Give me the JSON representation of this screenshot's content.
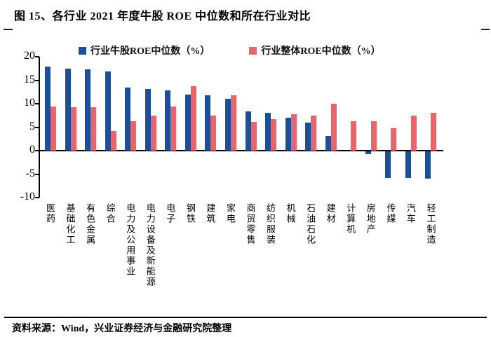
{
  "figure": {
    "title": "图 15、各行业 2021 年度牛股 ROE 中位数和所在行业对比",
    "source": "资料来源：Wind，兴业证券经济与金融研究院整理"
  },
  "colors": {
    "bull_blue": "#1a4f9c",
    "industry_red": "#e9656a",
    "axis_black": "#000000"
  },
  "chart_data": {
    "type": "bar",
    "title": "各行业2021年度牛股ROE中位数和所在行业对比",
    "categories": [
      "医药",
      "基础化工",
      "有色金属",
      "综合",
      "电力及公用事业",
      "电力设备及新能源",
      "电子",
      "钢铁",
      "建筑",
      "家电",
      "商贸零售",
      "纺织服装",
      "机械",
      "石油石化",
      "建材",
      "计算机",
      "房地产",
      "传媒",
      "汽车",
      "轻工制造"
    ],
    "series": [
      {
        "name": "行业牛股ROE中位数（%）",
        "color_key": "bull_blue",
        "values": [
          17.9,
          17.5,
          17.3,
          16.9,
          13.5,
          13.1,
          12.8,
          11.9,
          11.8,
          11.1,
          8.3,
          8.1,
          7.0,
          6.0,
          3.1,
          0,
          -0.6,
          -5.6,
          -5.7,
          -5.8
        ]
      },
      {
        "name": "行业整体ROE中位数（%）",
        "color_key": "industry_red",
        "values": [
          9.4,
          9.2,
          9.2,
          4.2,
          6.2,
          7.4,
          9.4,
          13.7,
          7.5,
          11.8,
          6.1,
          6.7,
          7.7,
          7.5,
          10.0,
          6.2,
          6.3,
          4.8,
          7.4,
          8.1
        ]
      }
    ],
    "xlabel": "",
    "ylabel": "",
    "ylim": [
      -10,
      20
    ],
    "yticks": [
      20,
      15,
      10,
      5,
      0,
      -5,
      -10
    ],
    "legend_position": "top",
    "grid": false
  }
}
